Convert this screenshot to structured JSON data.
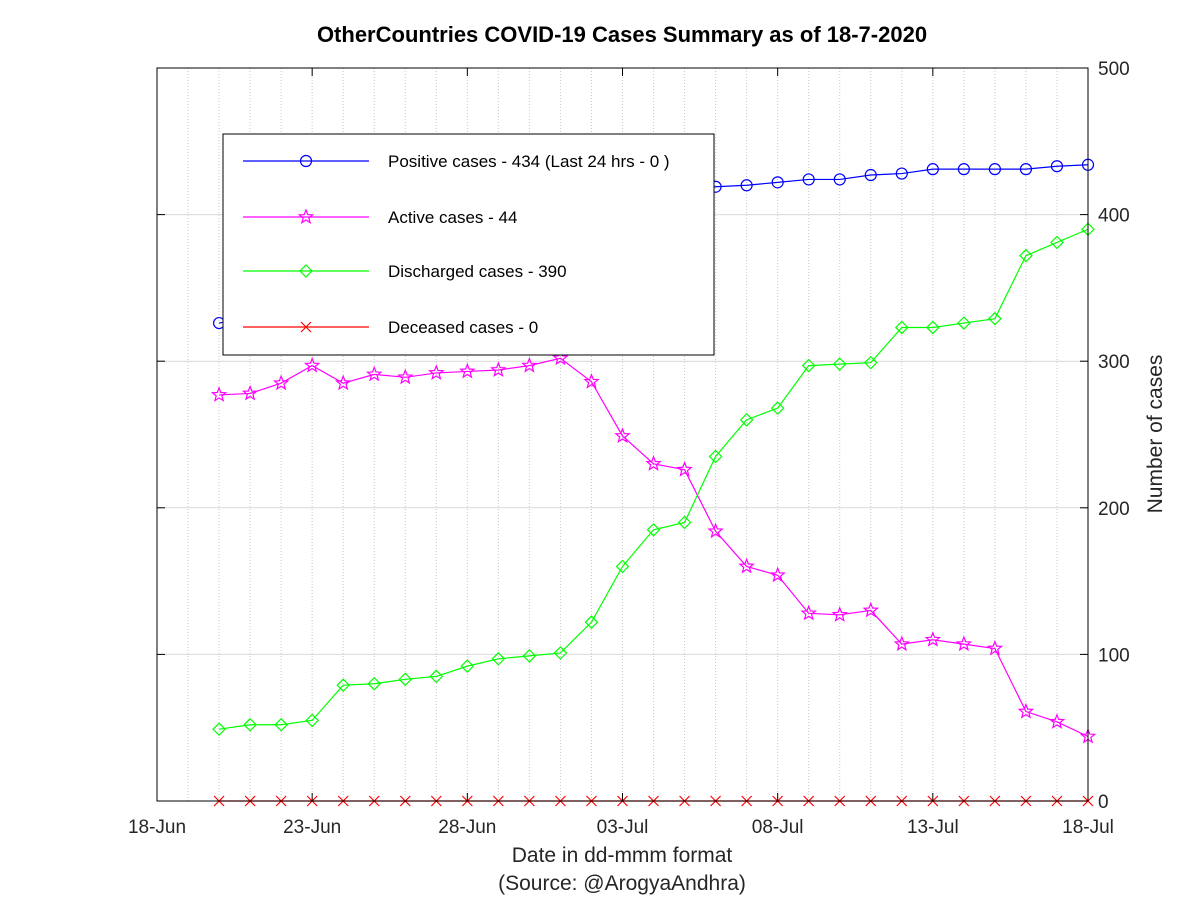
{
  "chart_data": {
    "type": "line",
    "title": "OtherCountries COVID-19 Cases Summary as of 18-7-2020",
    "xlabel": "Date in dd-mmm format",
    "source": "(Source: @ArogyaAndhra)",
    "ylabel": "Number of cases",
    "x_tick_labels": [
      "18-Jun",
      "23-Jun",
      "28-Jun",
      "03-Jul",
      "08-Jul",
      "13-Jul",
      "18-Jul"
    ],
    "y_ticks": [
      0,
      100,
      200,
      300,
      400,
      500
    ],
    "ylim": [
      0,
      500
    ],
    "y_axis_side": "right",
    "grid": true,
    "legend_position": "top-left",
    "x": [
      "2020-06-20",
      "2020-06-21",
      "2020-06-22",
      "2020-06-23",
      "2020-06-24",
      "2020-06-25",
      "2020-06-26",
      "2020-06-27",
      "2020-06-28",
      "2020-06-29",
      "2020-06-30",
      "2020-07-01",
      "2020-07-02",
      "2020-07-03",
      "2020-07-04",
      "2020-07-05",
      "2020-07-06",
      "2020-07-07",
      "2020-07-08",
      "2020-07-09",
      "2020-07-10",
      "2020-07-11",
      "2020-07-12",
      "2020-07-13",
      "2020-07-14",
      "2020-07-15",
      "2020-07-16",
      "2020-07-17",
      "2020-07-18"
    ],
    "series": [
      {
        "name": "Positive cases - 434 (Last 24 hrs - 0 )",
        "color": "#0000ff",
        "marker": "circle",
        "values": [
          326,
          330,
          337,
          352,
          364,
          371,
          372,
          376,
          385,
          391,
          396,
          403,
          408,
          410,
          413,
          416,
          419,
          420,
          422,
          424,
          424,
          427,
          428,
          431,
          431,
          431,
          431,
          433,
          434
        ]
      },
      {
        "name": "Active cases - 44",
        "color": "#ff00ff",
        "marker": "star",
        "values": [
          277,
          278,
          285,
          297,
          285,
          291,
          289,
          292,
          293,
          294,
          297,
          302,
          286,
          249,
          230,
          226,
          184,
          160,
          154,
          128,
          127,
          130,
          107,
          110,
          107,
          104,
          61,
          54,
          44
        ]
      },
      {
        "name": "Discharged cases - 390",
        "color": "#00ff00",
        "marker": "diamond",
        "values": [
          49,
          52,
          52,
          55,
          79,
          80,
          83,
          85,
          92,
          97,
          99,
          101,
          122,
          160,
          185,
          190,
          235,
          260,
          268,
          297,
          298,
          299,
          323,
          323,
          326,
          329,
          372,
          381,
          390
        ]
      },
      {
        "name": "Deceased cases - 0",
        "color": "#ff0000",
        "marker": "x",
        "values": [
          0,
          0,
          0,
          0,
          0,
          0,
          0,
          0,
          0,
          0,
          0,
          0,
          0,
          0,
          0,
          0,
          0,
          0,
          0,
          0,
          0,
          0,
          0,
          0,
          0,
          0,
          0,
          0,
          0
        ]
      }
    ]
  }
}
